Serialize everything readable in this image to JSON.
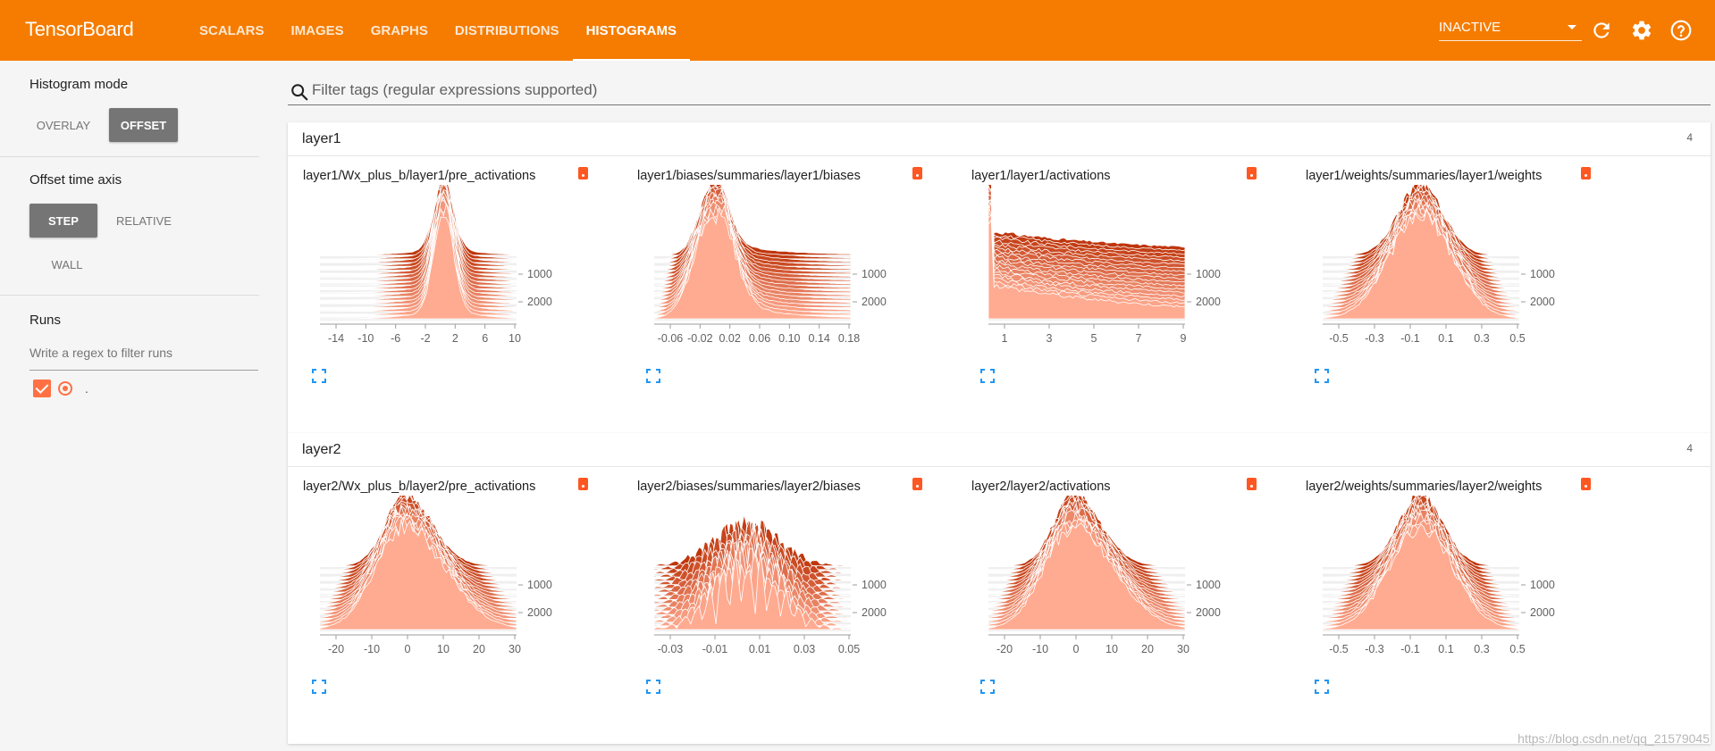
{
  "app": {
    "title": "TensorBoard"
  },
  "tabs": [
    {
      "label": "SCALARS",
      "active": false
    },
    {
      "label": "IMAGES",
      "active": false
    },
    {
      "label": "GRAPHS",
      "active": false
    },
    {
      "label": "DISTRIBUTIONS",
      "active": false
    },
    {
      "label": "HISTOGRAMS",
      "active": true
    }
  ],
  "toolbar": {
    "run_status": "INACTIVE",
    "icons": [
      "refresh-icon",
      "settings-gear-icon",
      "help-icon"
    ],
    "color": "#f57c00"
  },
  "sidebar": {
    "histogram_mode": {
      "title": "Histogram mode",
      "options": [
        "OVERLAY",
        "OFFSET"
      ],
      "selected": "OFFSET"
    },
    "offset_axis": {
      "title": "Offset time axis",
      "options": [
        "STEP",
        "RELATIVE",
        "WALL"
      ],
      "selected": "STEP"
    },
    "runs": {
      "title": "Runs",
      "filter_placeholder": "Write a regex to filter runs",
      "items": [
        {
          "name": ".",
          "checked": true
        }
      ]
    }
  },
  "main": {
    "filter_placeholder": "Filter tags (regular expressions supported)",
    "categories": [
      {
        "name": "layer1",
        "count": "4",
        "cards": [
          {
            "title": "layer1/Wx_plus_b/layer1/pre_activations",
            "x_ticks": [
              "-14",
              "-10",
              "-6",
              "-2",
              "2",
              "6",
              "10"
            ],
            "y_ticks": [
              "1000",
              "2000"
            ],
            "shape": "narrow-peak"
          },
          {
            "title": "layer1/biases/summaries/layer1/biases",
            "x_ticks": [
              "-0.06",
              "-0.02",
              "0.02",
              "0.06",
              "0.10",
              "0.14",
              "0.18"
            ],
            "y_ticks": [
              "1000",
              "2000"
            ],
            "shape": "left-peak-tail"
          },
          {
            "title": "layer1/layer1/activations",
            "x_ticks": [
              "1",
              "3",
              "5",
              "7",
              "9"
            ],
            "y_ticks": [
              "1000",
              "2000"
            ],
            "shape": "decay"
          },
          {
            "title": "layer1/weights/summaries/layer1/weights",
            "x_ticks": [
              "-0.5",
              "-0.3",
              "-0.1",
              "0.1",
              "0.3",
              "0.5"
            ],
            "y_ticks": [
              "1000",
              "2000"
            ],
            "shape": "bell"
          }
        ]
      },
      {
        "name": "layer2",
        "count": "4",
        "cards": [
          {
            "title": "layer2/Wx_plus_b/layer2/pre_activations",
            "x_ticks": [
              "-20",
              "-10",
              "0",
              "10",
              "20",
              "30"
            ],
            "y_ticks": [
              "1000",
              "2000"
            ],
            "shape": "bell-skew"
          },
          {
            "title": "layer2/biases/summaries/layer2/biases",
            "x_ticks": [
              "-0.03",
              "-0.01",
              "0.01",
              "0.03",
              "0.05"
            ],
            "y_ticks": [
              "1000",
              "2000"
            ],
            "shape": "jagged"
          },
          {
            "title": "layer2/layer2/activations",
            "x_ticks": [
              "-20",
              "-10",
              "0",
              "10",
              "20",
              "30"
            ],
            "y_ticks": [
              "1000",
              "2000"
            ],
            "shape": "bell-skew"
          },
          {
            "title": "layer2/weights/summaries/layer2/weights",
            "x_ticks": [
              "-0.5",
              "-0.3",
              "-0.1",
              "0.1",
              "0.3",
              "0.5"
            ],
            "y_ticks": [
              "1000",
              "2000"
            ],
            "shape": "bell"
          }
        ]
      }
    ]
  },
  "watermark": "https://blog.csdn.net/qq_21579045",
  "colors": {
    "histogram_light": "#ffab91",
    "histogram_dark": "#bf360c",
    "badge": "#ff5722"
  }
}
